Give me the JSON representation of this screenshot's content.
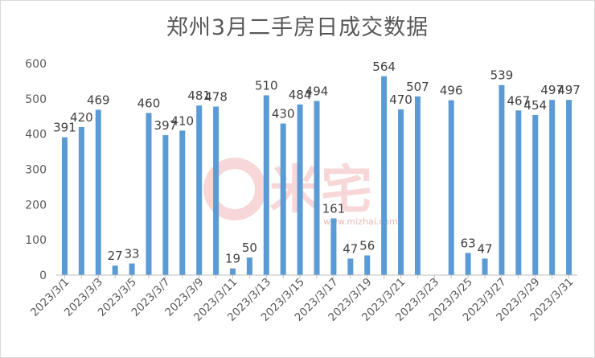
{
  "chart_data": {
    "type": "bar",
    "title": "郑州3月二手房日成交数据",
    "xlabel": "",
    "ylabel": "",
    "ylim": [
      0,
      600
    ],
    "yticks": [
      0,
      100,
      200,
      300,
      400,
      500,
      600
    ],
    "grid": false,
    "legend": "none",
    "bar_color": "#5b9bd5",
    "categories": [
      "2023/3/1",
      "2023/3/2",
      "2023/3/3",
      "2023/3/4",
      "2023/3/5",
      "2023/3/6",
      "2023/3/7",
      "2023/3/8",
      "2023/3/9",
      "2023/3/10",
      "2023/3/11",
      "2023/3/12",
      "2023/3/13",
      "2023/3/14",
      "2023/3/15",
      "2023/3/16",
      "2023/3/17",
      "2023/3/18",
      "2023/3/19",
      "2023/3/20",
      "2023/3/21",
      "2023/3/22",
      "2023/3/23",
      "2023/3/24",
      "2023/3/25",
      "2023/3/26",
      "2023/3/27",
      "2023/3/28",
      "2023/3/29",
      "2023/3/30",
      "2023/3/31"
    ],
    "values": [
      391,
      420,
      469,
      27,
      33,
      460,
      397,
      410,
      481,
      478,
      19,
      50,
      510,
      430,
      484,
      494,
      161,
      47,
      56,
      564,
      470,
      507,
      null,
      496,
      63,
      47,
      539,
      467,
      454,
      497,
      497
    ],
    "x_tick_labels": [
      "2023/3/1",
      "2023/3/3",
      "2023/3/5",
      "2023/3/7",
      "2023/3/9",
      "2023/3/11",
      "2023/3/13",
      "2023/3/15",
      "2023/3/17",
      "2023/3/19",
      "2023/3/21",
      "2023/3/23",
      "2023/3/25",
      "2023/3/27",
      "2023/3/29",
      "2023/3/31"
    ]
  },
  "watermark": {
    "text": "米宅",
    "url": "www.mizhai.com",
    "color": "#f2c4c4"
  }
}
